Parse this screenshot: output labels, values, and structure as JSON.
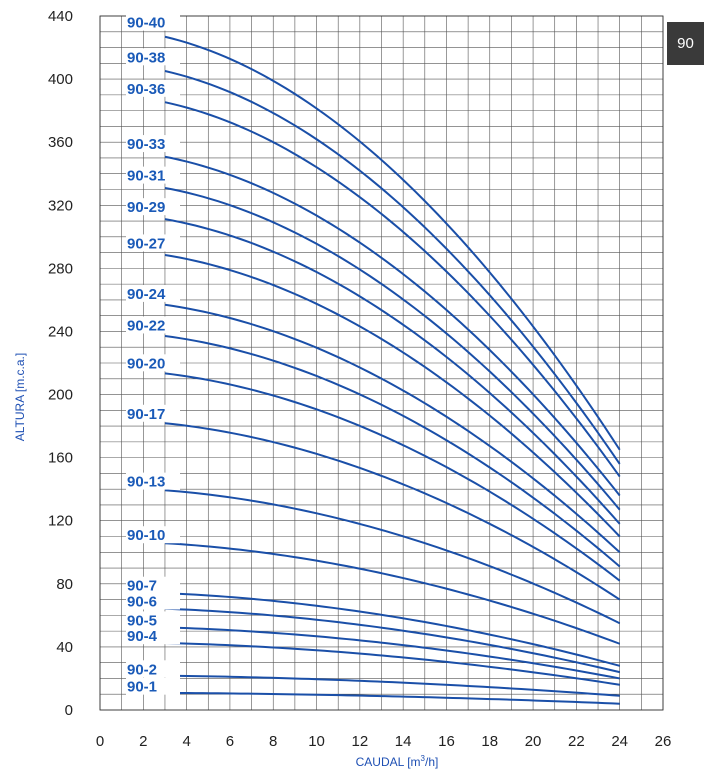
{
  "page_badge": "90",
  "chart_data": {
    "type": "line",
    "xlabel": "CAUDAL [m",
    "xlabel_sup": "3",
    "xlabel_end": "/h]",
    "ylabel": "ALTURA [m.c.a.]",
    "xlim": [
      0,
      26
    ],
    "ylim": [
      0,
      440
    ],
    "x_ticks": [
      "0",
      "2",
      "4",
      "6",
      "8",
      "10",
      "12",
      "14",
      "16",
      "18",
      "20",
      "22",
      "24",
      "26"
    ],
    "y_ticks": [
      "0",
      "40",
      "80",
      "120",
      "160",
      "200",
      "240",
      "280",
      "320",
      "360",
      "400",
      "440"
    ],
    "grid": true,
    "colors": {
      "curve": "#1a4fa8",
      "label": "#1a5ab8",
      "grid": "#555555",
      "axis_title": "#1e4fb3"
    },
    "curve_x_range": [
      3,
      24
    ],
    "series": [
      {
        "name": "90-40",
        "h0": 432,
        "h24": 165
      },
      {
        "name": "90-38",
        "h0": 410,
        "h24": 156
      },
      {
        "name": "90-36",
        "h0": 390,
        "h24": 148
      },
      {
        "name": "90-33",
        "h0": 355,
        "h24": 136
      },
      {
        "name": "90-31",
        "h0": 335,
        "h24": 127
      },
      {
        "name": "90-29",
        "h0": 315,
        "h24": 118
      },
      {
        "name": "90-27",
        "h0": 292,
        "h24": 110
      },
      {
        "name": "90-24",
        "h0": 260,
        "h24": 100
      },
      {
        "name": "90-22",
        "h0": 240,
        "h24": 91
      },
      {
        "name": "90-20",
        "h0": 216,
        "h24": 82
      },
      {
        "name": "90-17",
        "h0": 184,
        "h24": 70
      },
      {
        "name": "90-13",
        "h0": 141,
        "h24": 55
      },
      {
        "name": "90-10",
        "h0": 107,
        "h24": 42
      },
      {
        "name": "90-7",
        "h0": 75,
        "h24": 28
      },
      {
        "name": "90-6",
        "h0": 65,
        "h24": 24
      },
      {
        "name": "90-5",
        "h0": 53,
        "h24": 20
      },
      {
        "name": "90-4",
        "h0": 43,
        "h24": 16
      },
      {
        "name": "90-2",
        "h0": 22,
        "h24": 9
      },
      {
        "name": "90-1",
        "h0": 11,
        "h24": 4
      }
    ]
  }
}
